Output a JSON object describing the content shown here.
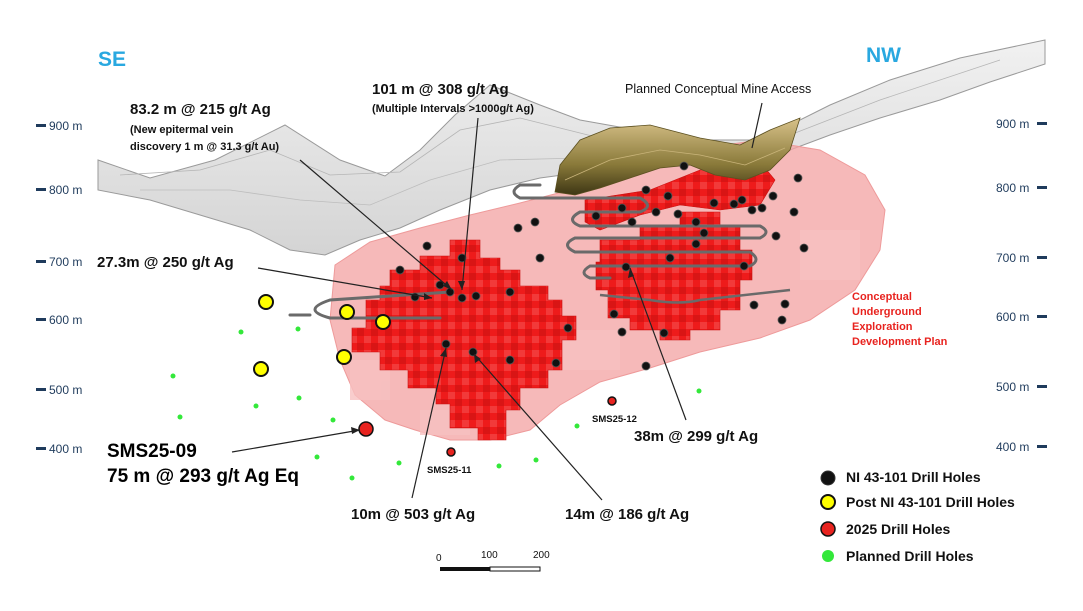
{
  "directions": {
    "left": "SE",
    "right": "NW",
    "color": "#29a8e0"
  },
  "elevations_left": [
    "900 m",
    "800 m",
    "700 m",
    "600 m",
    "500 m",
    "400 m"
  ],
  "elevations_right": [
    "900 m",
    "800 m",
    "700 m",
    "600 m",
    "500 m",
    "400 m"
  ],
  "annotations": {
    "a1_line1": "83.2 m @ 215 g/t Ag",
    "a1_line2": "(New epitermal vein",
    "a1_line3": "discovery 1 m @ 31.3 g/t Au)",
    "a2_line1": "101 m @ 308 g/t Ag",
    "a2_line2": "(Multiple Intervals >1000g/t Ag)",
    "a3": "27.3m @ 250 g/t Ag",
    "a4": "38m @ 299 g/t Ag",
    "a5": "10m @ 503 g/t Ag",
    "a6": "14m @ 186 g/t Ag",
    "mine_access": "Planned Conceptual Mine Access",
    "plan_line1": "Conceptual",
    "plan_line2": "Underground",
    "plan_line3": "Exploration",
    "plan_line4": "Development Plan",
    "plan_color": "#e8231f"
  },
  "holes": {
    "sms09": "SMS25-09",
    "sms09_result": "75 m @ 293 g/t Ag Eq",
    "sms11": "SMS25-11",
    "sms12": "SMS25-12"
  },
  "legend": [
    {
      "label": "NI 43-101 Drill Holes",
      "color": "#111111"
    },
    {
      "label": "Post NI 43-101 Drill Holes",
      "color": "#ffff00"
    },
    {
      "label": "2025 Drill Holes",
      "color": "#e8231f"
    },
    {
      "label": "Planned Drill Holes",
      "color": "#33e83a"
    }
  ],
  "scale": {
    "ticks": [
      "0",
      "100",
      "200"
    ]
  }
}
